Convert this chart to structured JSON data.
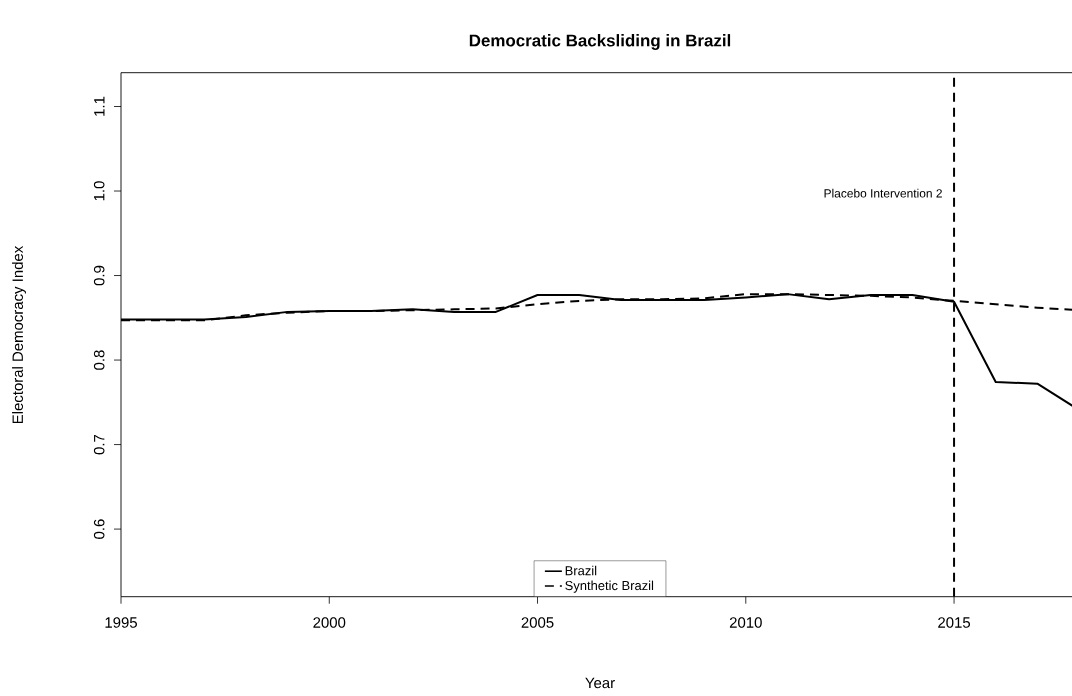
{
  "chart_data": {
    "type": "line",
    "title": "Democratic Backsliding in Brazil",
    "xlabel": "Year",
    "ylabel": "Electoral Democracy Index",
    "x": [
      1995,
      1996,
      1997,
      1998,
      1999,
      2000,
      2001,
      2002,
      2003,
      2004,
      2005,
      2006,
      2007,
      2008,
      2009,
      2010,
      2011,
      2012,
      2013,
      2014,
      2015,
      2016,
      2017,
      2018
    ],
    "series": [
      {
        "name": "Brazil",
        "color": "#000000",
        "line_style": "solid",
        "values": [
          0.848,
          0.848,
          0.848,
          0.851,
          0.857,
          0.858,
          0.858,
          0.86,
          0.857,
          0.857,
          0.877,
          0.877,
          0.871,
          0.871,
          0.871,
          0.874,
          0.878,
          0.872,
          0.877,
          0.877,
          0.869,
          0.774,
          0.772,
          0.741
        ]
      },
      {
        "name": "Synthetic Brazil",
        "color": "#000000",
        "line_style": "dashed",
        "values": [
          0.847,
          0.847,
          0.847,
          0.853,
          0.856,
          0.858,
          0.858,
          0.859,
          0.86,
          0.861,
          0.866,
          0.87,
          0.872,
          0.872,
          0.873,
          0.878,
          0.878,
          0.877,
          0.876,
          0.874,
          0.87,
          0.866,
          0.862,
          0.859
        ]
      }
    ],
    "xlim": [
      1995,
      2018
    ],
    "ylim": [
      0.52,
      1.14
    ],
    "xticks": [
      1995,
      2000,
      2005,
      2010,
      2015
    ],
    "yticks": [
      0.6,
      0.7,
      0.8,
      0.9,
      {
        "value": 1.0,
        "label": "1.0"
      },
      1.1
    ],
    "ref_lines": [
      {
        "axis": "x",
        "value": 2015,
        "label": "Placebo Intervention 2",
        "color": "#000000",
        "line_style": "dashed"
      }
    ],
    "legend": "bottom",
    "grid": false,
    "marker": "none"
  }
}
